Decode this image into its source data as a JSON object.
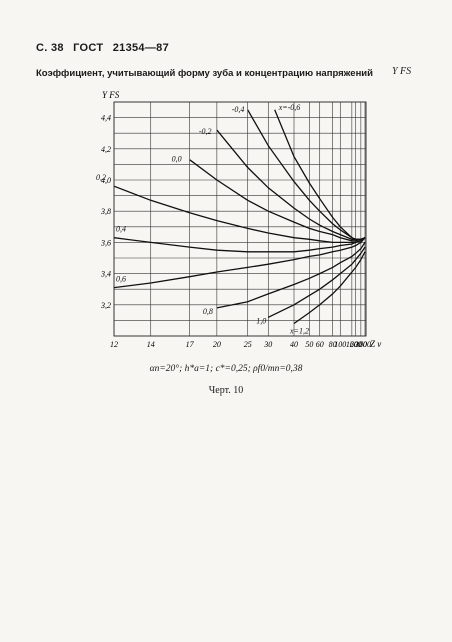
{
  "header": {
    "page_number": "С. 38",
    "standard": "ГОСТ",
    "standard_number": "21354—87"
  },
  "chart_data": {
    "type": "line",
    "title": "Коэффициент, учитывающий форму зуба и концентрацию напряжений",
    "title_symbol": "Y FS",
    "ylabel": "Y FS",
    "xlabel": "Z v",
    "x_scale": "reciprocal",
    "x_ticks": [
      12,
      14,
      17,
      20,
      25,
      30,
      40,
      50,
      60,
      80,
      100,
      160,
      200,
      300,
      500
    ],
    "x_tick_labels": [
      "12",
      "14",
      "17",
      "20",
      "25",
      "30",
      "40",
      "50",
      "60",
      "80",
      "100",
      "160",
      "200",
      "300",
      "500"
    ],
    "xlim": [
      12,
      600
    ],
    "y_ticks": [
      3.2,
      3.4,
      3.6,
      3.8,
      4.0,
      4.2,
      4.4
    ],
    "y_tick_labels": [
      "3,2",
      "3,4",
      "3,6",
      "3,8",
      "4,0",
      "4,2",
      "4,4"
    ],
    "ylim": [
      3.0,
      4.5
    ],
    "grid": true,
    "series": [
      {
        "name": "x=-0,6",
        "x": [
          32,
          40,
          50,
          60,
          80,
          100,
          160,
          200,
          300,
          500
        ],
        "y": [
          4.45,
          4.15,
          3.98,
          3.88,
          3.76,
          3.7,
          3.63,
          3.62,
          3.62,
          3.63
        ]
      },
      {
        "name": "-0,4",
        "x": [
          25,
          30,
          40,
          50,
          60,
          80,
          100,
          160,
          200,
          300,
          500
        ],
        "y": [
          4.45,
          4.22,
          3.99,
          3.87,
          3.8,
          3.72,
          3.68,
          3.63,
          3.62,
          3.62,
          3.63
        ]
      },
      {
        "name": "-0,2",
        "x": [
          20,
          25,
          30,
          40,
          50,
          60,
          80,
          100,
          160,
          200,
          300,
          500
        ],
        "y": [
          4.32,
          4.08,
          3.95,
          3.82,
          3.75,
          3.71,
          3.67,
          3.65,
          3.62,
          3.62,
          3.62,
          3.63
        ]
      },
      {
        "name": "0,0",
        "x": [
          17,
          20,
          25,
          30,
          40,
          50,
          60,
          80,
          100,
          160,
          200,
          300,
          500
        ],
        "y": [
          4.13,
          4.0,
          3.87,
          3.8,
          3.73,
          3.69,
          3.67,
          3.65,
          3.63,
          3.61,
          3.61,
          3.62,
          3.63
        ]
      },
      {
        "name": "0,2",
        "x": [
          12,
          14,
          17,
          20,
          25,
          30,
          40,
          50,
          60,
          80,
          100,
          160,
          200,
          300,
          500
        ],
        "y": [
          3.96,
          3.87,
          3.79,
          3.74,
          3.69,
          3.66,
          3.63,
          3.62,
          3.61,
          3.6,
          3.6,
          3.6,
          3.6,
          3.61,
          3.63
        ]
      },
      {
        "name": "0,4",
        "x": [
          12,
          14,
          17,
          20,
          25,
          30,
          40,
          50,
          60,
          80,
          100,
          160,
          200,
          300,
          500
        ],
        "y": [
          3.63,
          3.6,
          3.57,
          3.55,
          3.54,
          3.54,
          3.54,
          3.55,
          3.56,
          3.57,
          3.58,
          3.59,
          3.6,
          3.61,
          3.63
        ]
      },
      {
        "name": "0,6",
        "x": [
          12,
          14,
          17,
          20,
          25,
          30,
          40,
          50,
          60,
          80,
          100,
          160,
          200,
          300,
          500
        ],
        "y": [
          3.31,
          3.34,
          3.38,
          3.41,
          3.44,
          3.46,
          3.49,
          3.51,
          3.52,
          3.54,
          3.55,
          3.57,
          3.58,
          3.6,
          3.63
        ]
      },
      {
        "name": "0,8",
        "x": [
          20,
          25,
          30,
          40,
          50,
          60,
          80,
          100,
          160,
          200,
          300,
          500
        ],
        "y": [
          3.18,
          3.22,
          3.27,
          3.33,
          3.37,
          3.4,
          3.44,
          3.47,
          3.51,
          3.53,
          3.56,
          3.6
        ]
      },
      {
        "name": "1,0",
        "x": [
          30,
          40,
          50,
          60,
          80,
          100,
          160,
          200,
          300,
          500
        ],
        "y": [
          3.12,
          3.2,
          3.26,
          3.3,
          3.36,
          3.4,
          3.46,
          3.49,
          3.53,
          3.57
        ]
      },
      {
        "name": "x=1,2",
        "x": [
          40,
          50,
          60,
          80,
          100,
          160,
          200,
          300,
          500
        ],
        "y": [
          3.08,
          3.15,
          3.2,
          3.27,
          3.32,
          3.41,
          3.44,
          3.49,
          3.54
        ]
      }
    ],
    "series_labels": [
      "x=-0,6",
      "-0,4",
      "-0,2",
      "0,0",
      "0,2",
      "0,4",
      "0,6",
      "0,8",
      "1,0",
      "x=1,2"
    ]
  },
  "captions": {
    "parameters": "αn=20°; h*a=1; c*=0,25; ρf0/mn=0,38",
    "figure": "Черт. 10"
  }
}
